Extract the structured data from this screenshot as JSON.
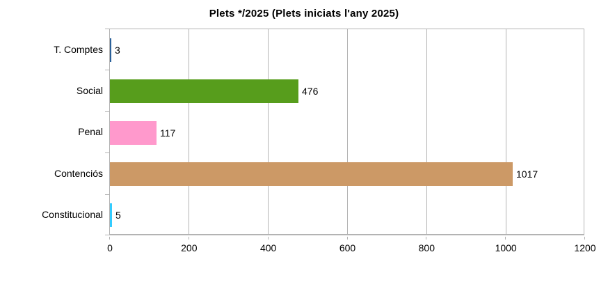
{
  "title": "Plets */2025 (Plets iniciats l'any 2025)",
  "chart_data": {
    "type": "bar",
    "orientation": "horizontal",
    "title": "Plets */2025 (Plets iniciats l'any 2025)",
    "categories": [
      "T. Comptes",
      "Social",
      "Penal",
      "Contenciós",
      "Constitucional"
    ],
    "values": [
      3,
      476,
      117,
      1017,
      5
    ],
    "value_labels": [
      "3",
      "476",
      "117",
      "1017",
      "5"
    ],
    "bar_colors": [
      "#2a6099",
      "#579d1c",
      "#ff99cc",
      "#cc9966",
      "#33ccff"
    ],
    "xlabel": "",
    "ylabel": "",
    "xlim": [
      0,
      1200
    ],
    "x_ticks": [
      0,
      200,
      400,
      600,
      800,
      1000,
      1200
    ],
    "grid": "vertical-only",
    "legend": "none",
    "gridline_color": "#b3b3b3",
    "axis_color": "#b3b3b3",
    "background_color": "#ffffff",
    "text_color": "#000000"
  }
}
